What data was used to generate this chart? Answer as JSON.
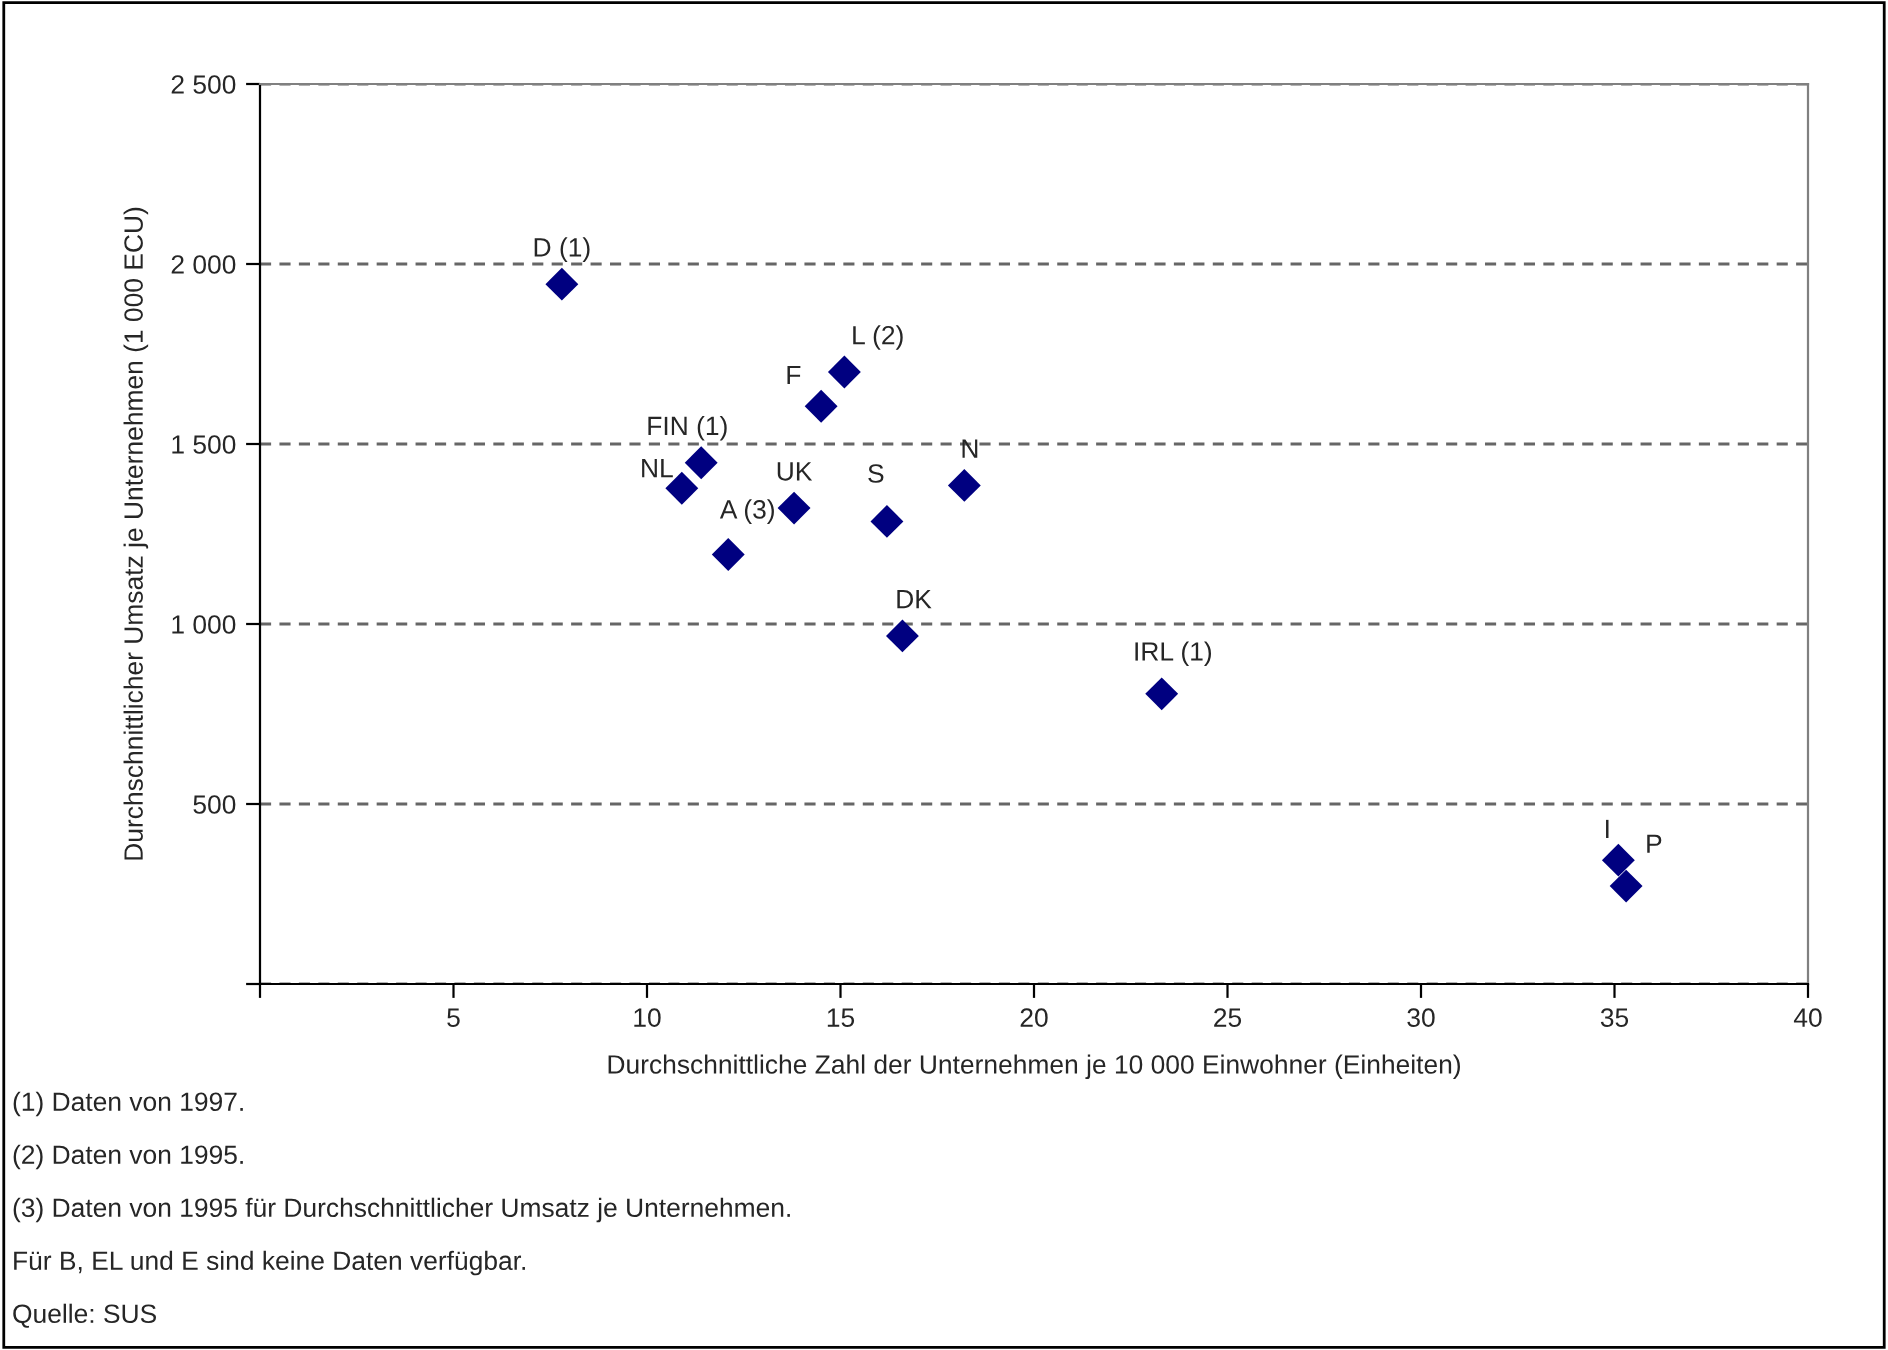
{
  "chart_data": {
    "type": "scatter",
    "xlabel": "Durchschnittliche Zahl der Unternehmen je 10 000 Einwohner (Einheiten)",
    "ylabel": "Durchschnittlicher Umsatz je Unternehmen (1 000 ECU)",
    "x": [
      7.8,
      15.1,
      14.5,
      11.4,
      10.9,
      13.8,
      12.1,
      16.2,
      18.2,
      16.6,
      23.3,
      35.1,
      35.3
    ],
    "series": [
      {
        "color": "#000080",
        "values": [
          1944,
          1700,
          1605,
          1448,
          1377,
          1322,
          1193,
          1285,
          1385,
          967,
          806,
          344,
          272
        ]
      }
    ],
    "marker": "diamond",
    "xlim": [
      0,
      40
    ],
    "ylim": [
      0,
      2500
    ],
    "xticks": [
      {
        "value": 0,
        "label": null
      },
      5,
      10,
      15,
      20,
      25,
      30,
      35,
      40
    ],
    "yticks": [
      {
        "value": 0,
        "label": null
      },
      {
        "value": 500,
        "label": "500"
      },
      {
        "value": 1000,
        "label": "1 000"
      },
      {
        "value": 1500,
        "label": "1 500"
      },
      {
        "value": 2000,
        "label": "2 000"
      },
      {
        "value": 2500,
        "label": "2 500"
      }
    ],
    "grid": "y",
    "line_style": "dashed",
    "annotations": [
      {
        "text": "D (1)",
        "x": 7.8,
        "y": 1944
      },
      {
        "text": "L (2)",
        "x": 15.1,
        "y": 1700
      },
      {
        "text": "F",
        "x": 14.5,
        "y": 1605
      },
      {
        "text": "FIN (1)",
        "x": 11.4,
        "y": 1448
      },
      {
        "text": "NL",
        "x": 10.9,
        "y": 1377
      },
      {
        "text": "UK",
        "x": 13.8,
        "y": 1322
      },
      {
        "text": "A (3)",
        "x": 12.1,
        "y": 1193
      },
      {
        "text": "S",
        "x": 16.2,
        "y": 1285
      },
      {
        "text": "N",
        "x": 18.2,
        "y": 1385
      },
      {
        "text": "DK",
        "x": 16.6,
        "y": 967
      },
      {
        "text": "IRL (1)",
        "x": 23.3,
        "y": 806
      },
      {
        "text": "I",
        "x": 35.1,
        "y": 344
      },
      {
        "text": "P",
        "x": 35.3,
        "y": 272
      },
      "(1) Daten von 1997.",
      "(2) Daten von 1995.",
      "(3) Daten von 1995 für Durchschnittlicher Umsatz je Unternehmen.",
      "Für B, EL und E sind keine Daten verfügbar.",
      "Quelle: SUS"
    ]
  }
}
